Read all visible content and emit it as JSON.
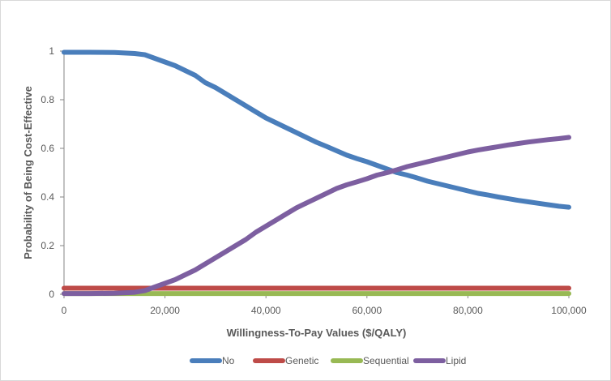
{
  "chart_data": {
    "type": "line",
    "title": "",
    "xlabel": "Willingness-To-Pay Values ($/QALY)",
    "ylabel": "Probability of Being Cost-Effective",
    "xlim": [
      0,
      100000
    ],
    "ylim": [
      0,
      1
    ],
    "xticks": [
      0,
      20000,
      40000,
      60000,
      80000,
      100000
    ],
    "xtick_labels": [
      "0",
      "20,000",
      "40,000",
      "60,000",
      "80,000",
      "100,000"
    ],
    "yticks": [
      0,
      0.2,
      0.4,
      0.6,
      0.8,
      1
    ],
    "ytick_labels": [
      "0",
      "0.2",
      "0.4",
      "0.6",
      "0.8",
      "1"
    ],
    "grid": false,
    "legend_position": "bottom",
    "x": [
      0,
      5000,
      10000,
      14000,
      16000,
      18000,
      20000,
      22000,
      24000,
      26000,
      28000,
      30000,
      32000,
      34000,
      36000,
      38000,
      40000,
      42000,
      44000,
      46000,
      48000,
      50000,
      52000,
      54000,
      56000,
      58000,
      60000,
      62000,
      64000,
      66000,
      68000,
      70000,
      72000,
      74000,
      76000,
      78000,
      80000,
      82000,
      84000,
      86000,
      88000,
      90000,
      92000,
      94000,
      96000,
      98000,
      100000
    ],
    "series": [
      {
        "name": "No",
        "color": "#4a7ebb",
        "values": [
          0.995,
          0.995,
          0.994,
          0.99,
          0.985,
          0.97,
          0.955,
          0.94,
          0.92,
          0.9,
          0.87,
          0.85,
          0.825,
          0.8,
          0.775,
          0.75,
          0.725,
          0.705,
          0.685,
          0.665,
          0.645,
          0.625,
          0.608,
          0.59,
          0.572,
          0.558,
          0.545,
          0.53,
          0.515,
          0.5,
          0.49,
          0.478,
          0.465,
          0.455,
          0.445,
          0.435,
          0.425,
          0.415,
          0.408,
          0.4,
          0.393,
          0.386,
          0.38,
          0.374,
          0.368,
          0.362,
          0.358
        ]
      },
      {
        "name": "Genetic",
        "color": "#be4b48",
        "values": [
          0.025,
          0.025,
          0.025,
          0.025,
          0.025,
          0.025,
          0.025,
          0.025,
          0.025,
          0.025,
          0.025,
          0.025,
          0.025,
          0.025,
          0.025,
          0.025,
          0.025,
          0.025,
          0.025,
          0.025,
          0.025,
          0.025,
          0.025,
          0.025,
          0.025,
          0.025,
          0.025,
          0.025,
          0.025,
          0.025,
          0.025,
          0.025,
          0.025,
          0.025,
          0.025,
          0.025,
          0.025,
          0.025,
          0.025,
          0.025,
          0.025,
          0.025,
          0.025,
          0.025,
          0.025,
          0.025,
          0.025
        ]
      },
      {
        "name": "Sequential",
        "color": "#98b954",
        "values": [
          0.003,
          0.003,
          0.003,
          0.003,
          0.003,
          0.003,
          0.003,
          0.003,
          0.003,
          0.003,
          0.003,
          0.003,
          0.003,
          0.003,
          0.003,
          0.003,
          0.003,
          0.003,
          0.003,
          0.003,
          0.003,
          0.003,
          0.003,
          0.003,
          0.003,
          0.003,
          0.003,
          0.003,
          0.003,
          0.003,
          0.003,
          0.003,
          0.003,
          0.003,
          0.003,
          0.003,
          0.003,
          0.003,
          0.003,
          0.003,
          0.003,
          0.003,
          0.003,
          0.003,
          0.003,
          0.003,
          0.003
        ]
      },
      {
        "name": "Lipid",
        "color": "#7d5fa0",
        "values": [
          0.003,
          0.003,
          0.004,
          0.008,
          0.015,
          0.03,
          0.045,
          0.06,
          0.08,
          0.1,
          0.125,
          0.15,
          0.175,
          0.2,
          0.225,
          0.255,
          0.28,
          0.305,
          0.33,
          0.355,
          0.375,
          0.395,
          0.415,
          0.435,
          0.45,
          0.462,
          0.475,
          0.49,
          0.5,
          0.512,
          0.525,
          0.535,
          0.545,
          0.555,
          0.565,
          0.575,
          0.585,
          0.593,
          0.6,
          0.607,
          0.614,
          0.62,
          0.626,
          0.631,
          0.636,
          0.64,
          0.645
        ]
      }
    ]
  }
}
